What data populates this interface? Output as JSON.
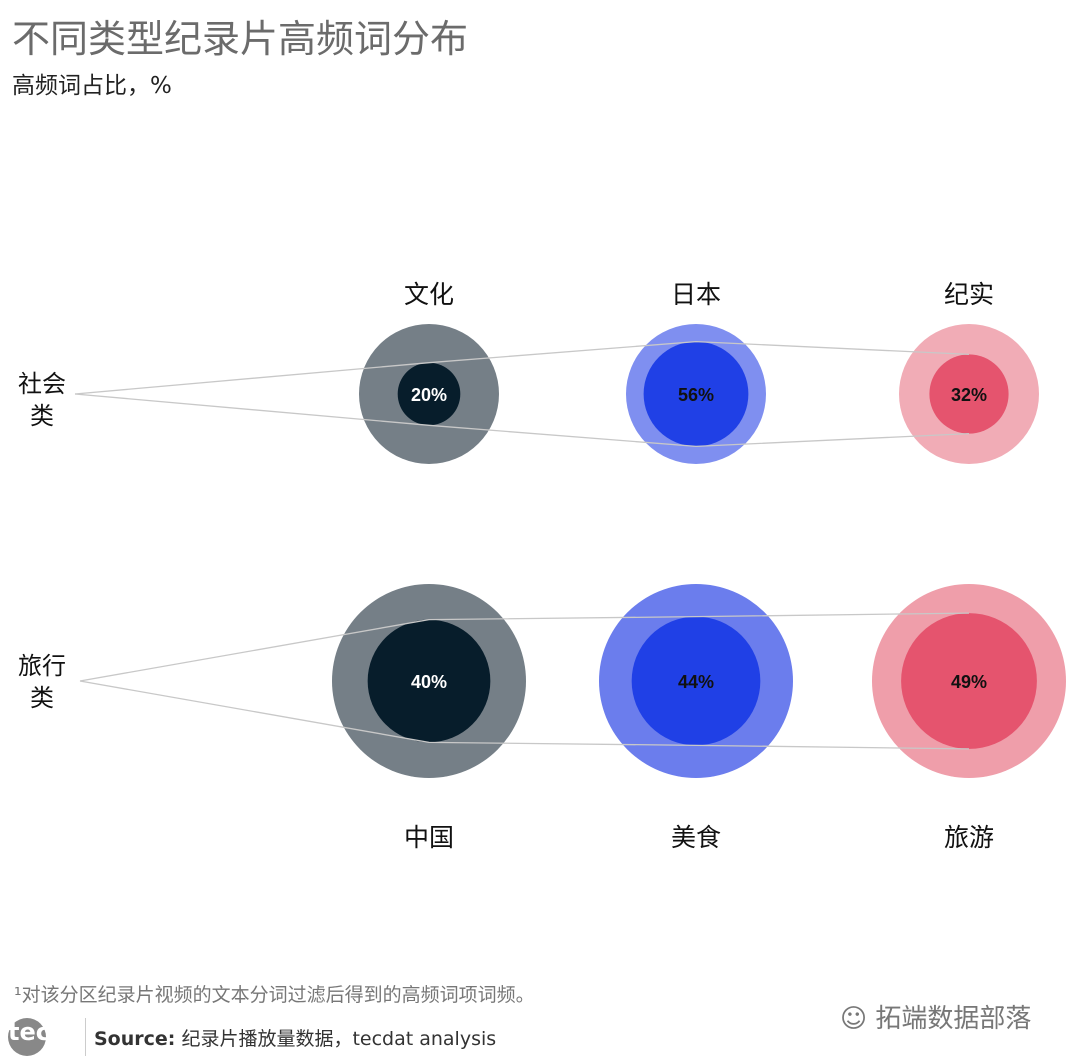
{
  "title": "不同类型纪录片高频词分布",
  "subtitle": "高频词占比，%",
  "chart_data": {
    "type": "bubble",
    "title": "不同类型纪录片高频词分布",
    "subtitle": "高频词占比，%",
    "rows": [
      {
        "label": "社会类",
        "items": [
          {
            "word": "文化",
            "value": 20,
            "label": "20%"
          },
          {
            "word": "日本",
            "value": 56,
            "label": "56%"
          },
          {
            "word": "纪实",
            "value": 32,
            "label": "32%"
          }
        ]
      },
      {
        "label": "旅行类",
        "items": [
          {
            "word": "中国",
            "value": 40,
            "label": "40%"
          },
          {
            "word": "美食",
            "value": 44,
            "label": "44%"
          },
          {
            "word": "旅游",
            "value": 49,
            "label": "49%"
          }
        ]
      }
    ],
    "colors": {
      "outer": [
        [
          "#757f87",
          "#7f8ff0",
          "#f1acb6"
        ],
        [
          "#757f87",
          "#6b7ded",
          "#ef9eaa"
        ]
      ],
      "inner": [
        "#071d2b",
        "#2040e6",
        "#e5546e"
      ],
      "text": [
        "#ffffff",
        "#111111",
        "#111111"
      ]
    }
  },
  "footnote": "¹对该分区纪录片视频的文本分词过滤后得到的高频词项词频。",
  "logo": "tecdat",
  "source_label": "Source:",
  "source_text": "纪录片播放量数据，tecdat analysis",
  "watermark": "拓端数据部落"
}
